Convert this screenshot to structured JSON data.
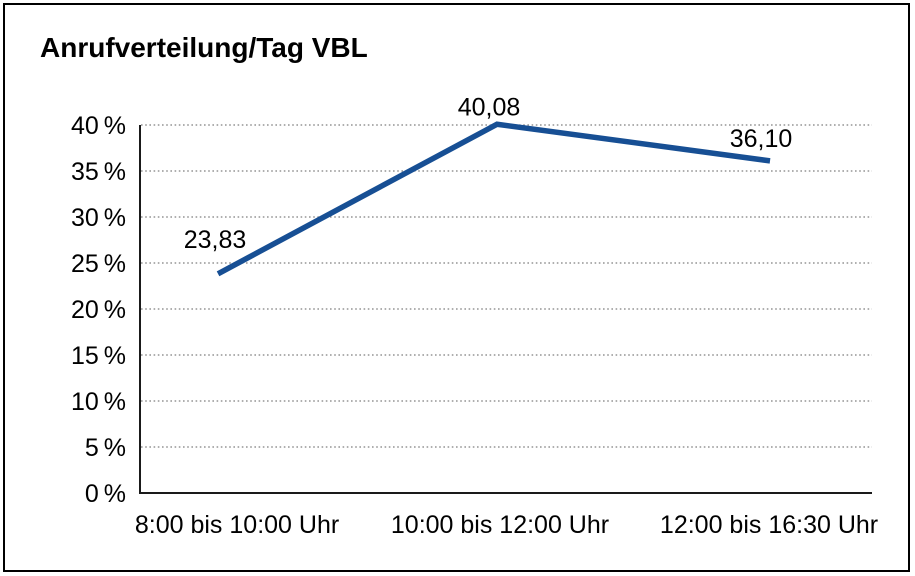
{
  "chart_data": {
    "type": "line",
    "title": "Anrufverteilung/Tag VBL",
    "categories": [
      "8:00 bis 10:00 Uhr",
      "10:00 bis 12:00 Uhr",
      "12:00 bis 16:30 Uhr"
    ],
    "values": [
      23.83,
      40.08,
      36.1
    ],
    "point_labels": [
      "23,83",
      "40,08",
      "36,10"
    ],
    "series_name": "Anrufverteilung",
    "xlabel": "",
    "ylabel": "",
    "ylim": [
      0,
      40
    ],
    "ytick_step": 5,
    "yticks": [
      {
        "value": 0,
        "label": "0 %"
      },
      {
        "value": 5,
        "label": "5 %"
      },
      {
        "value": 10,
        "label": "10 %"
      },
      {
        "value": 15,
        "label": "15 %"
      },
      {
        "value": 20,
        "label": "20 %"
      },
      {
        "value": 25,
        "label": "25 %"
      },
      {
        "value": 30,
        "label": "30 %"
      },
      {
        "value": 35,
        "label": "35 %"
      },
      {
        "value": 40,
        "label": "40 %"
      }
    ],
    "grid": "horizontal-dotted",
    "legend": "none",
    "colors": {
      "line": "#174f94",
      "axis": "#1a1a1a",
      "grid": "#7f7f7f",
      "text": "#000000",
      "background": "#ffffff",
      "frame_border": "#000000"
    }
  }
}
